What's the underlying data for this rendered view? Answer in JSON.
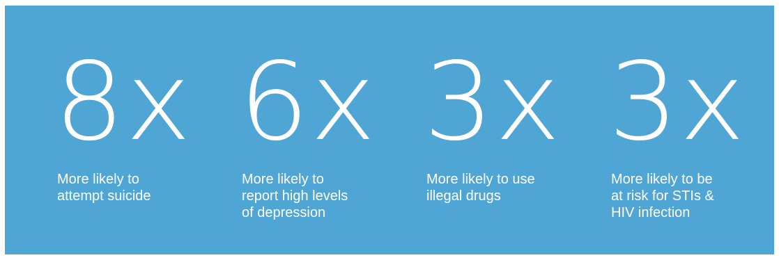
{
  "colors": {
    "panel_background": "#4fa5d3",
    "text": "#ffffff"
  },
  "stats": [
    {
      "value": "8x",
      "label": "More likely to\nattempt suicide"
    },
    {
      "value": "6x",
      "label": "More likely to\nreport high levels\nof depression"
    },
    {
      "value": "3x",
      "label": "More likely to use\nillegal drugs"
    },
    {
      "value": "3x",
      "label": "More likely to be\nat risk for STIs &\nHIV infection"
    }
  ]
}
